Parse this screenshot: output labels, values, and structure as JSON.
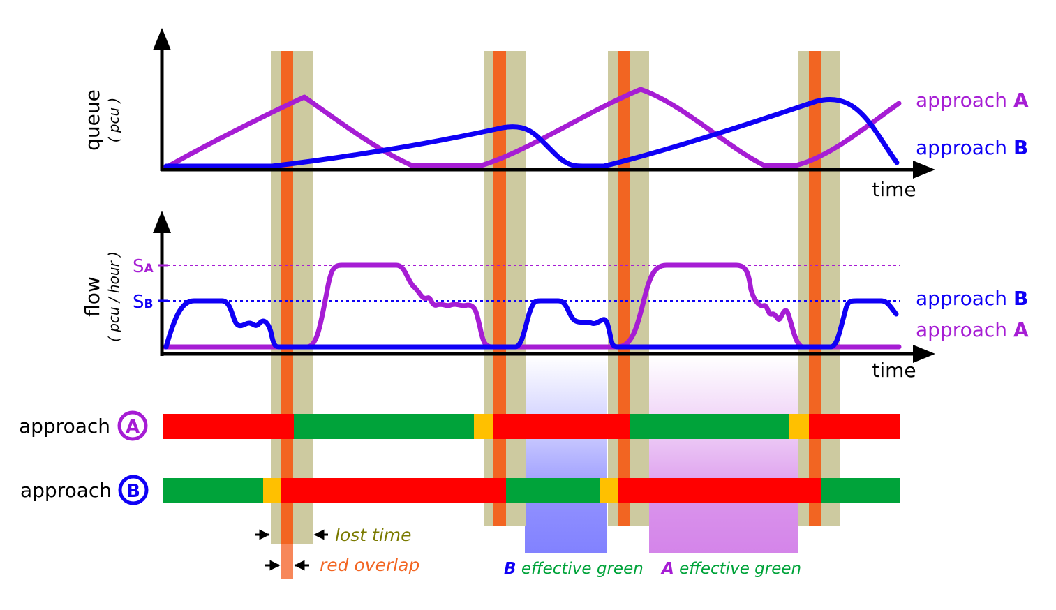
{
  "colors": {
    "approach_A": "#a61dd4",
    "approach_B": "#0f00f5",
    "signal_red": "#ff0000",
    "signal_green": "#00a33a",
    "signal_amber": "#ffc000",
    "lost_time": "#cdcaa0",
    "red_overlap": "#f26522",
    "lost_time_text": "#7a7a00",
    "red_overlap_text": "#f26522",
    "effective_green_text": "#00a33a",
    "axis": "#000000"
  },
  "queue_panel": {
    "ylabel": "queue",
    "yunit": "( pcu )",
    "xlabel": "time",
    "legend": [
      {
        "prefix": "approach ",
        "key": "A",
        "color_ref": "approach_A"
      },
      {
        "prefix": "approach ",
        "key": "B",
        "color_ref": "approach_B"
      }
    ]
  },
  "flow_panel": {
    "ylabel": "flow",
    "yunit": "( pcu / hour )",
    "xlabel": "time",
    "saturation_A": {
      "main": "S",
      "sub": "A"
    },
    "saturation_B": {
      "main": "S",
      "sub": "B"
    },
    "legend": [
      {
        "prefix": "approach ",
        "key": "B",
        "color_ref": "approach_B"
      },
      {
        "prefix": "approach ",
        "key": "A",
        "color_ref": "approach_A"
      }
    ]
  },
  "signal_rows": [
    {
      "label": "approach",
      "badge": "A",
      "color_ref": "approach_A",
      "phases": [
        "red",
        "green",
        "amber",
        "red",
        "green",
        "amber",
        "red"
      ]
    },
    {
      "label": "approach",
      "badge": "B",
      "color_ref": "approach_B",
      "phases": [
        "green",
        "amber",
        "red",
        "green",
        "amber",
        "red",
        "green"
      ]
    }
  ],
  "annotations": {
    "lost_time": "lost time",
    "red_overlap": "red overlap",
    "B_effective_green": {
      "key": "B",
      "text": " effective green"
    },
    "A_effective_green": {
      "key": "A",
      "text": " effective green"
    }
  }
}
